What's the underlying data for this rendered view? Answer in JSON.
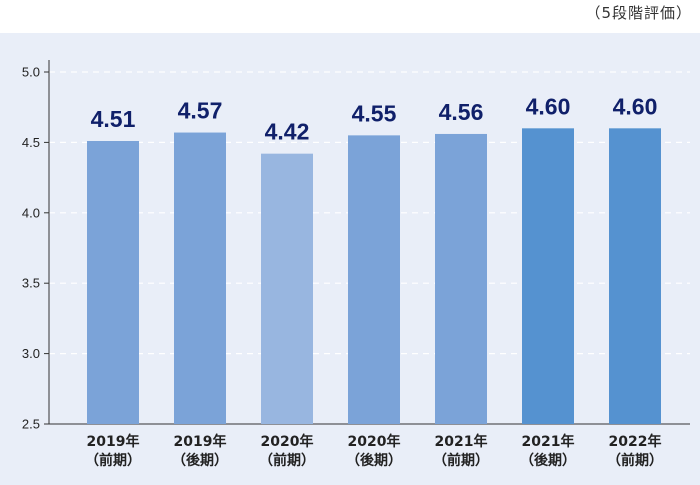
{
  "unit_note": "（5段階評価）",
  "chart_data": {
    "type": "bar",
    "categories": [
      [
        "2019年",
        "（前期）"
      ],
      [
        "2019年",
        "（後期）"
      ],
      [
        "2020年",
        "（前期）"
      ],
      [
        "2020年",
        "（後期）"
      ],
      [
        "2021年",
        "（前期）"
      ],
      [
        "2021年",
        "（後期）"
      ],
      [
        "2022年",
        "（前期）"
      ]
    ],
    "values": [
      4.51,
      4.57,
      4.42,
      4.55,
      4.56,
      4.6,
      4.6
    ],
    "data_labels": [
      "4.51",
      "4.57",
      "4.42",
      "4.55",
      "4.56",
      "4.60",
      "4.60"
    ],
    "bar_colors": [
      "#7ba3d8",
      "#7ba3d8",
      "#98b6e0",
      "#7ba3d8",
      "#7ba3d8",
      "#5592d0",
      "#5592d0"
    ],
    "ylim": [
      2.5,
      5.0
    ],
    "yticks": [
      "2.5",
      "3.0",
      "3.5",
      "4.0",
      "4.5",
      "5.0"
    ],
    "grid": true,
    "background": "#e9eef8"
  }
}
